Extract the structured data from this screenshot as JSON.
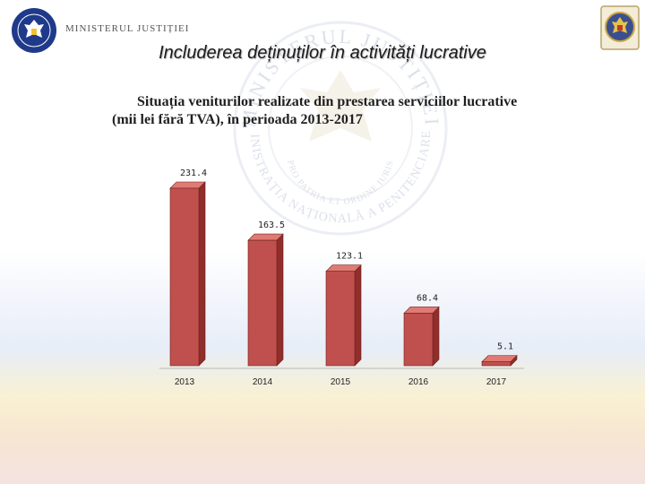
{
  "header": {
    "ministry_name": "MINISTERUL JUSTIȚIEI",
    "slide_title": "Includerea deținuților în activități lucrative",
    "logo_left_icon": "government-of-romania-logo",
    "logo_right_icon": "penitentiary-emblem"
  },
  "watermark": {
    "arc_text_top": "MINISTERUL JUSTIȚIEI",
    "arc_text_inner": "PRO PATRIA ET ORDINE IURIS",
    "arc_text_bottom": "ADMINISTRAȚIA NAȚIONALĂ A PENITENCIARELOR"
  },
  "chart_data": {
    "type": "bar",
    "title": "Situația veniturilor realizate din prestarea serviciilor lucrative (mii lei fără TVA), în perioada  2013-2017",
    "categories": [
      "2013",
      "2014",
      "2015",
      "2016",
      "2017"
    ],
    "values": [
      231.4,
      163.5,
      123.1,
      68.4,
      5.1
    ],
    "value_labels": [
      "231.4",
      "163.5",
      "123.1",
      "68.4",
      "5.1"
    ],
    "xlabel": "",
    "ylabel": "",
    "ylim": [
      0,
      231.4
    ],
    "grid": false,
    "legend": "none",
    "colors": {
      "bar_front": "#c0504d",
      "bar_top": "#e07a74",
      "bar_side": "#8f2e2b",
      "edge": "#6e1f1c"
    }
  }
}
